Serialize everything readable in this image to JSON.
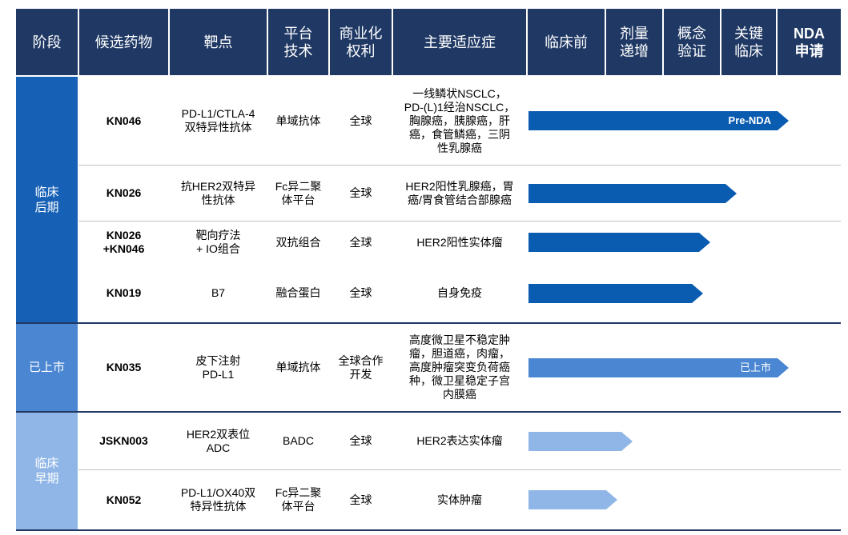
{
  "headers": {
    "stage": "阶段",
    "drug": "候选药物",
    "target": "靶点",
    "platform": "平台\n技术",
    "rights": "商业化\n权利",
    "indication": "主要适应症",
    "preclinical": "临床前",
    "dose_escalation": "剂量\n递增",
    "poc": "概念\n验证",
    "pivotal": "关键\n临床",
    "nda": "NDA\n申请"
  },
  "groups": {
    "late": "临床\n后期",
    "marketed": "已上市",
    "early": "临床\n早期"
  },
  "rows": [
    {
      "drug": "KN046",
      "target": "PD-L1/CTLA-4\n双特异性抗体",
      "platform": "单域抗体",
      "rights": "全球",
      "indication": "一线鳞状NSCLC，\nPD-(L)1经治NSCLC，\n胸腺癌，胰腺癌，肝\n癌，食管鳞癌，三阴\n性乳腺癌",
      "stage_progress": 1.0,
      "bar_label": "Pre-NDA",
      "color": "#0a5cb0"
    },
    {
      "drug": "KN026",
      "target": "抗HER2双特异\n性抗体",
      "platform": "Fc异二聚\n体平台",
      "rights": "全球",
      "indication": "HER2阳性乳腺癌，胃\n癌/胃食管结合部腺癌",
      "stage_progress": 0.8,
      "bar_label": "",
      "color": "#0a5cb0"
    },
    {
      "drug": "KN026\n+KN046",
      "target": "靶向疗法\n+ IO组合",
      "platform": "双抗组合",
      "rights": "全球",
      "indication": "HER2阳性实体瘤",
      "stage_progress": 0.7,
      "bar_label": "",
      "color": "#0a5cb0"
    },
    {
      "drug": "KN019",
      "target": "B7",
      "platform": "融合蛋白",
      "rights": "全球",
      "indication": "自身免疫",
      "stage_progress": 0.67,
      "bar_label": "",
      "color": "#0a5cb0"
    },
    {
      "drug": "KN035",
      "target": "皮下注射\nPD-L1",
      "platform": "单域抗体",
      "rights": "全球合作\n开发",
      "indication": "高度微卫星不稳定肿\n瘤，胆道癌，肉瘤，\n高度肿瘤突变负荷癌\n种，微卫星稳定子宫\n内膜癌",
      "stage_progress": 1.0,
      "bar_label": "已上市",
      "color": "#4a86d2"
    },
    {
      "drug": "JSKN003",
      "target": "HER2双表位\nADC",
      "platform": "BADC",
      "rights": "全球",
      "indication": "HER2表达实体瘤",
      "stage_progress": 0.4,
      "bar_label": "",
      "color": "#8fb6e6"
    },
    {
      "drug": "KN052",
      "target": "PD-L1/OX40双\n特异性抗体",
      "platform": "Fc异二聚\n体平台",
      "rights": "全球",
      "indication": "实体肿瘤",
      "stage_progress": 0.34,
      "bar_label": "",
      "color": "#8fb6e6"
    }
  ]
}
